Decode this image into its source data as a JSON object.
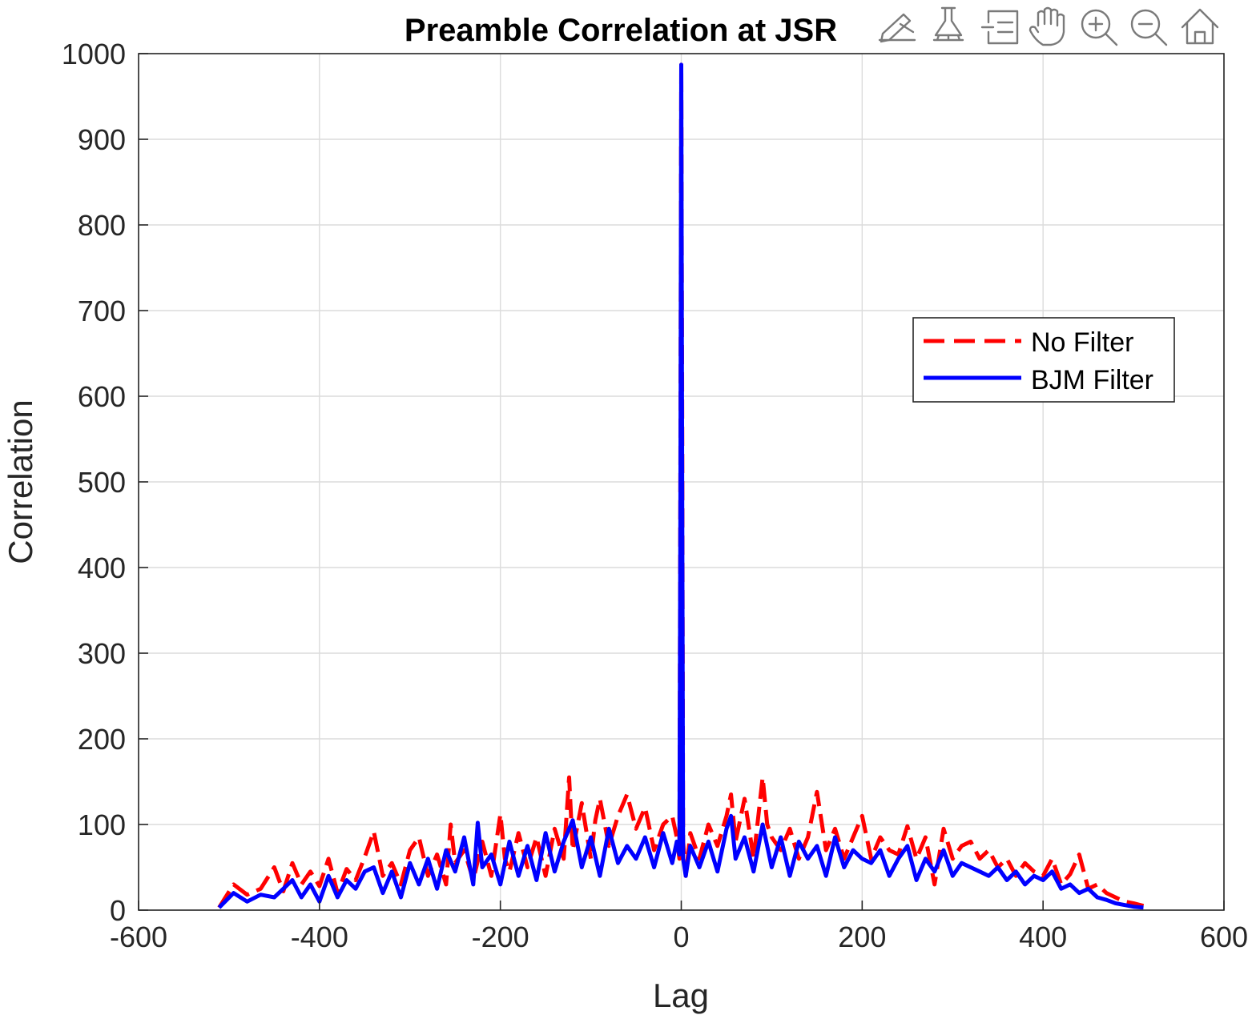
{
  "chart_data": {
    "type": "line",
    "title": "Preamble Correlation at JSR",
    "xlabel": "Lag",
    "ylabel": "Correlation",
    "xlim": [
      -600,
      600
    ],
    "ylim": [
      0,
      1000
    ],
    "xticks": [
      -600,
      -400,
      -200,
      0,
      200,
      400,
      600
    ],
    "yticks": [
      0,
      100,
      200,
      300,
      400,
      500,
      600,
      700,
      800,
      900,
      1000
    ],
    "grid": true,
    "legend_position": "east",
    "series": [
      {
        "name": "No Filter",
        "style": "dashed",
        "color": "#ff0000",
        "x": [
          -511,
          -495,
          -480,
          -465,
          -450,
          -440,
          -430,
          -420,
          -410,
          -400,
          -390,
          -380,
          -370,
          -360,
          -350,
          -340,
          -330,
          -320,
          -310,
          -300,
          -290,
          -280,
          -270,
          -260,
          -255,
          -250,
          -240,
          -230,
          -220,
          -210,
          -200,
          -195,
          -190,
          -180,
          -170,
          -160,
          -150,
          -140,
          -130,
          -124,
          -120,
          -110,
          -100,
          -95,
          -90,
          -80,
          -70,
          -60,
          -50,
          -40,
          -30,
          -20,
          -10,
          -5,
          -2,
          -1,
          0,
          1,
          2,
          5,
          10,
          20,
          30,
          40,
          50,
          55,
          60,
          70,
          80,
          90,
          95,
          100,
          110,
          120,
          130,
          140,
          150,
          160,
          170,
          180,
          190,
          200,
          210,
          220,
          230,
          240,
          250,
          260,
          270,
          280,
          290,
          300,
          310,
          320,
          330,
          340,
          350,
          360,
          370,
          380,
          390,
          400,
          410,
          420,
          430,
          440,
          450,
          460,
          470,
          480,
          490,
          500,
          511
        ],
        "y": [
          3,
          30,
          18,
          25,
          50,
          22,
          55,
          30,
          45,
          28,
          60,
          20,
          48,
          35,
          62,
          92,
          40,
          55,
          30,
          70,
          85,
          40,
          65,
          30,
          100,
          55,
          70,
          35,
          80,
          40,
          112,
          60,
          45,
          90,
          50,
          85,
          40,
          95,
          60,
          155,
          70,
          125,
          60,
          105,
          130,
          75,
          110,
          135,
          95,
          120,
          70,
          100,
          110,
          85,
          60,
          520,
          987,
          600,
          80,
          40,
          90,
          60,
          100,
          75,
          110,
          135,
          80,
          130,
          60,
          155,
          100,
          85,
          70,
          95,
          60,
          85,
          138,
          70,
          95,
          60,
          85,
          110,
          60,
          85,
          70,
          65,
          98,
          60,
          85,
          30,
          95,
          60,
          75,
          80,
          60,
          70,
          50,
          60,
          40,
          55,
          45,
          40,
          60,
          30,
          42,
          65,
          25,
          30,
          20,
          15,
          10,
          8,
          5
        ]
      },
      {
        "name": "BJM Filter",
        "style": "solid",
        "color": "#0000ff",
        "x": [
          -511,
          -495,
          -480,
          -465,
          -450,
          -440,
          -430,
          -420,
          -410,
          -400,
          -390,
          -380,
          -370,
          -360,
          -350,
          -340,
          -330,
          -320,
          -310,
          -300,
          -290,
          -280,
          -270,
          -260,
          -250,
          -240,
          -230,
          -225,
          -220,
          -210,
          -200,
          -190,
          -180,
          -170,
          -160,
          -150,
          -140,
          -130,
          -120,
          -110,
          -100,
          -90,
          -80,
          -70,
          -60,
          -50,
          -40,
          -30,
          -20,
          -10,
          -5,
          -2,
          -1,
          0,
          1,
          2,
          5,
          10,
          20,
          30,
          40,
          50,
          55,
          60,
          70,
          80,
          90,
          100,
          110,
          120,
          130,
          140,
          150,
          160,
          170,
          180,
          190,
          200,
          210,
          220,
          230,
          240,
          250,
          260,
          270,
          280,
          290,
          300,
          310,
          320,
          330,
          340,
          350,
          360,
          370,
          380,
          390,
          400,
          410,
          420,
          430,
          440,
          450,
          460,
          470,
          480,
          490,
          500,
          511
        ],
        "y": [
          3,
          20,
          10,
          18,
          15,
          25,
          35,
          15,
          30,
          10,
          40,
          15,
          35,
          25,
          45,
          50,
          20,
          45,
          15,
          55,
          30,
          60,
          25,
          70,
          45,
          85,
          30,
          102,
          50,
          65,
          30,
          80,
          40,
          75,
          35,
          90,
          45,
          80,
          105,
          50,
          85,
          40,
          95,
          55,
          75,
          60,
          85,
          50,
          90,
          55,
          80,
          65,
          480,
          987,
          520,
          60,
          40,
          75,
          50,
          80,
          45,
          95,
          110,
          60,
          85,
          45,
          100,
          50,
          85,
          40,
          80,
          60,
          75,
          40,
          85,
          50,
          70,
          60,
          55,
          70,
          40,
          60,
          75,
          35,
          60,
          45,
          70,
          40,
          55,
          50,
          45,
          40,
          50,
          35,
          45,
          30,
          40,
          35,
          45,
          25,
          30,
          20,
          25,
          15,
          12,
          8,
          6,
          4,
          3
        ]
      }
    ]
  },
  "toolbar": {
    "icons": [
      "brush-data-icon",
      "clear-brush-icon",
      "legend-toggle-icon",
      "pan-hand-icon",
      "zoom-in-icon",
      "zoom-out-icon",
      "home-icon"
    ]
  }
}
